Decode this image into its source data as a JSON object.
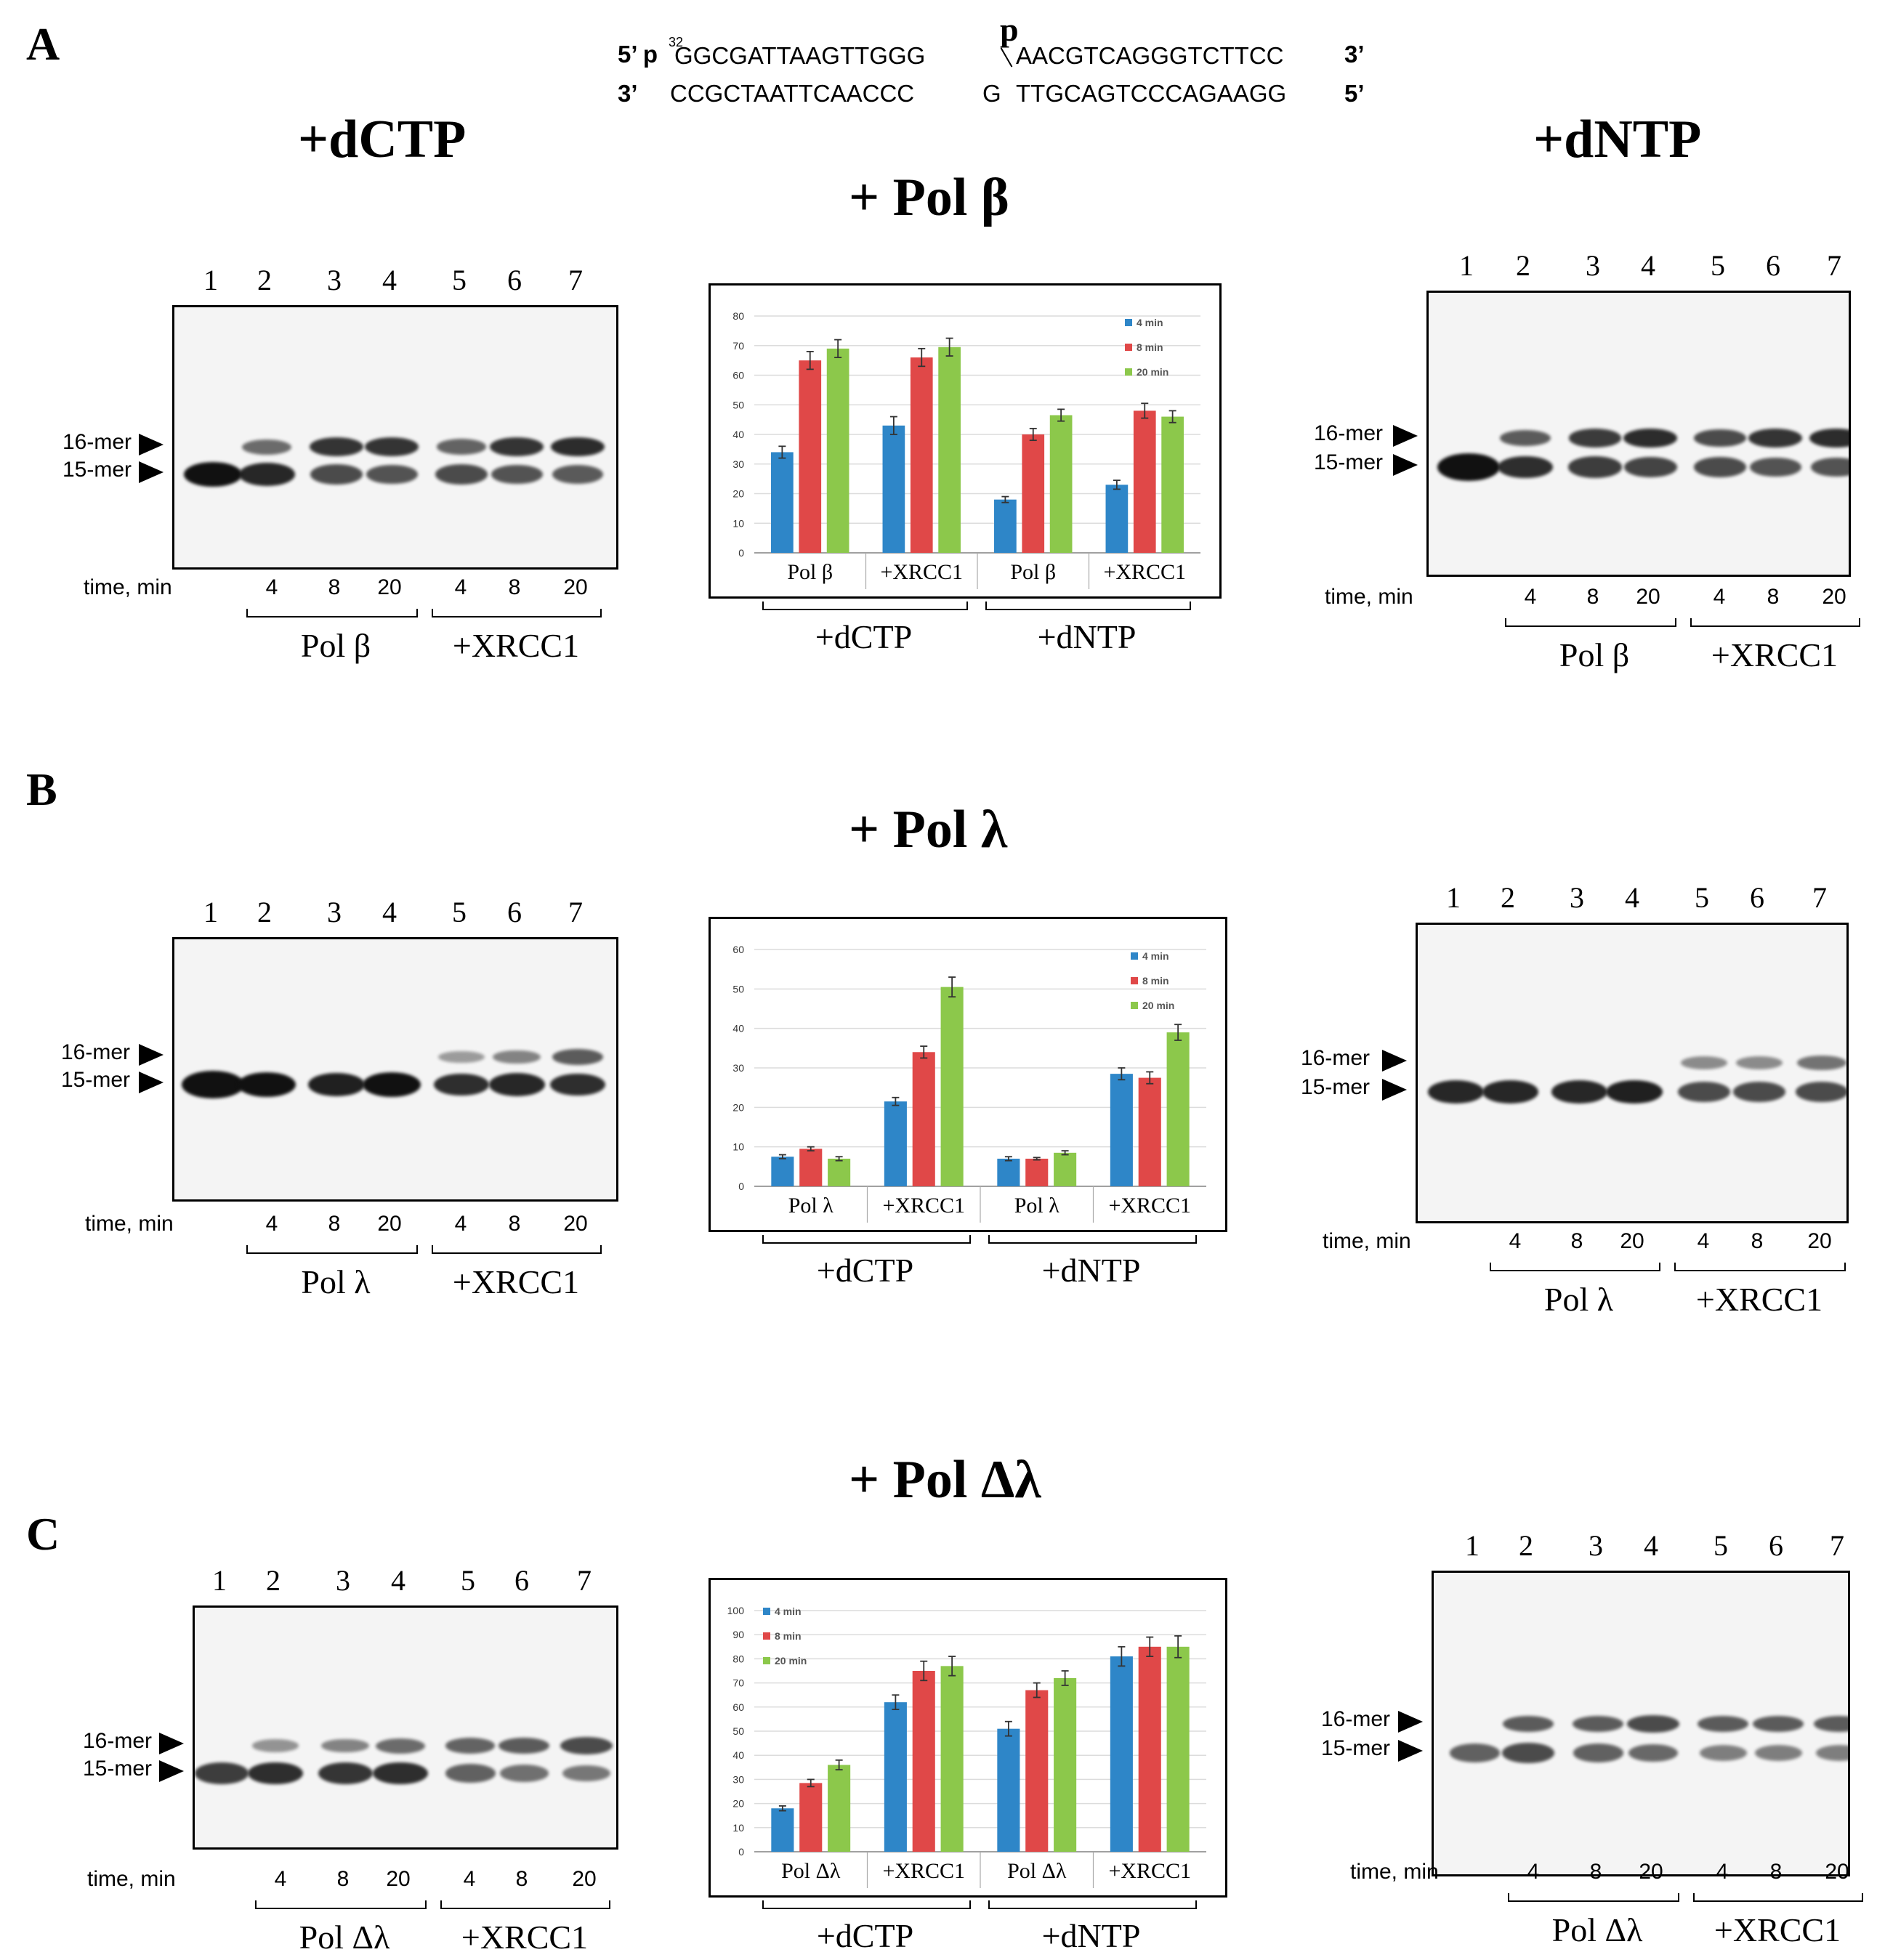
{
  "panels": {
    "A": {
      "letter": "A",
      "title": "+ Pol β"
    },
    "B": {
      "letter": "B",
      "title": "+ Pol λ"
    },
    "C": {
      "letter": "C",
      "title": "+ Pol Δλ"
    }
  },
  "headers": {
    "dctp": "+dCTP",
    "dntp": "+dNTP"
  },
  "substrate": {
    "top_5": "5’ p",
    "top_32": "32",
    "top_left": "GGCGATTAAGTTGGG",
    "top_p": "p",
    "top_right": "AACGTCAGGGTCTTCC",
    "top_3": "3’",
    "bottom_3": "3’",
    "bottom_left": "CCGCTAATTCAACCC",
    "bottom_g": "G",
    "bottom_right": "TTGCAGTCCCAGAAGG",
    "bottom_5": "5’"
  },
  "gel_common": {
    "lanes": [
      "1",
      "2",
      "3",
      "4",
      "5",
      "6",
      "7"
    ],
    "marker_16": "16-mer",
    "marker_15": "15-mer",
    "time_label": "time, min",
    "times": [
      "4",
      "8",
      "20",
      "4",
      "8",
      "20"
    ],
    "xrcc1": "+XRCC1"
  },
  "enzymes": {
    "A": "Pol β",
    "B": "Pol λ",
    "C": "Pol Δλ"
  },
  "chart_colors": {
    "4 min": "#2e86c8",
    "8 min": "#e04848",
    "20 min": "#8cc84b"
  },
  "chart_data": [
    {
      "type": "bar",
      "panel": "A",
      "categories": [
        "Pol β",
        "+XRCC1",
        "Pol β",
        "+XRCC1"
      ],
      "groups": [
        "+dCTP",
        "+dNTP"
      ],
      "series": [
        {
          "name": "4 min",
          "values": [
            34,
            43,
            18,
            23
          ],
          "errors": [
            2,
            3,
            1,
            1.5
          ]
        },
        {
          "name": "8 min",
          "values": [
            65,
            66,
            40,
            48
          ],
          "errors": [
            3,
            3,
            2,
            2.5
          ]
        },
        {
          "name": "20 min",
          "values": [
            69,
            69.5,
            46.5,
            46
          ],
          "errors": [
            3,
            3,
            2,
            2
          ]
        }
      ],
      "ylim": [
        0,
        80
      ],
      "yticks": [
        0,
        10,
        20,
        30,
        40,
        50,
        60,
        70,
        80
      ],
      "legend": "top-right"
    },
    {
      "type": "bar",
      "panel": "B",
      "categories": [
        "Pol λ",
        "+XRCC1",
        "Pol λ",
        "+XRCC1"
      ],
      "groups": [
        "+dCTP",
        "+dNTP"
      ],
      "series": [
        {
          "name": "4 min",
          "values": [
            7.5,
            21.5,
            7,
            28.5
          ],
          "errors": [
            0.5,
            1,
            0.5,
            1.5
          ]
        },
        {
          "name": "8 min",
          "values": [
            9.5,
            34,
            7,
            27.5
          ],
          "errors": [
            0.5,
            1.5,
            0.3,
            1.5
          ]
        },
        {
          "name": "20 min",
          "values": [
            7,
            50.5,
            8.5,
            39
          ],
          "errors": [
            0.5,
            2.5,
            0.5,
            2
          ]
        }
      ],
      "ylim": [
        0,
        60
      ],
      "yticks": [
        0,
        10,
        20,
        30,
        40,
        50,
        60
      ],
      "legend": "top-right"
    },
    {
      "type": "bar",
      "panel": "C",
      "categories": [
        "Pol Δλ",
        "+XRCC1",
        "Pol Δλ",
        "+XRCC1"
      ],
      "groups": [
        "+dCTP",
        "+dNTP"
      ],
      "series": [
        {
          "name": "4 min",
          "values": [
            18,
            62,
            51,
            81
          ],
          "errors": [
            1,
            3,
            3,
            4
          ]
        },
        {
          "name": "8 min",
          "values": [
            28.5,
            75,
            67,
            85
          ],
          "errors": [
            1.5,
            4,
            3,
            4
          ]
        },
        {
          "name": "20 min",
          "values": [
            36,
            77,
            72,
            85
          ],
          "errors": [
            2,
            4,
            3,
            4.5
          ]
        }
      ],
      "ylim": [
        0,
        100
      ],
      "yticks": [
        0,
        10,
        20,
        30,
        40,
        50,
        60,
        70,
        80,
        90,
        100
      ],
      "legend": "top-left"
    }
  ]
}
